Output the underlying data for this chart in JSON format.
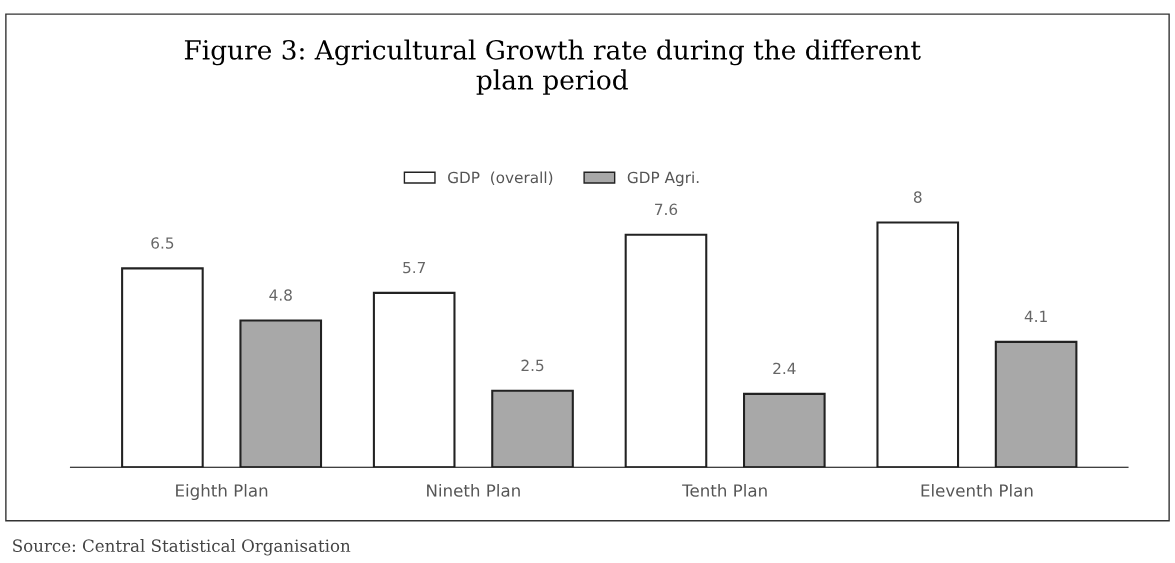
{
  "chart_data": {
    "type": "bar",
    "title": "Figure 3: Agricultural Growth rate during the different\nplan period",
    "categories": [
      "Eighth Plan",
      "Nineth Plan",
      "Tenth Plan",
      "Eleventh Plan"
    ],
    "series": [
      {
        "name": "GDP  (overall)",
        "color": "#ffffff",
        "values": [
          6.5,
          5.7,
          7.6,
          8
        ]
      },
      {
        "name": "GDP Agri.",
        "color": "#a8a8a8",
        "values": [
          4.8,
          2.5,
          2.4,
          4.1
        ]
      }
    ],
    "data_labels": true,
    "legend": "top",
    "grid": false,
    "tick_labels": "x",
    "annotations": [
      "Source: Central Statistical Organisation"
    ]
  }
}
